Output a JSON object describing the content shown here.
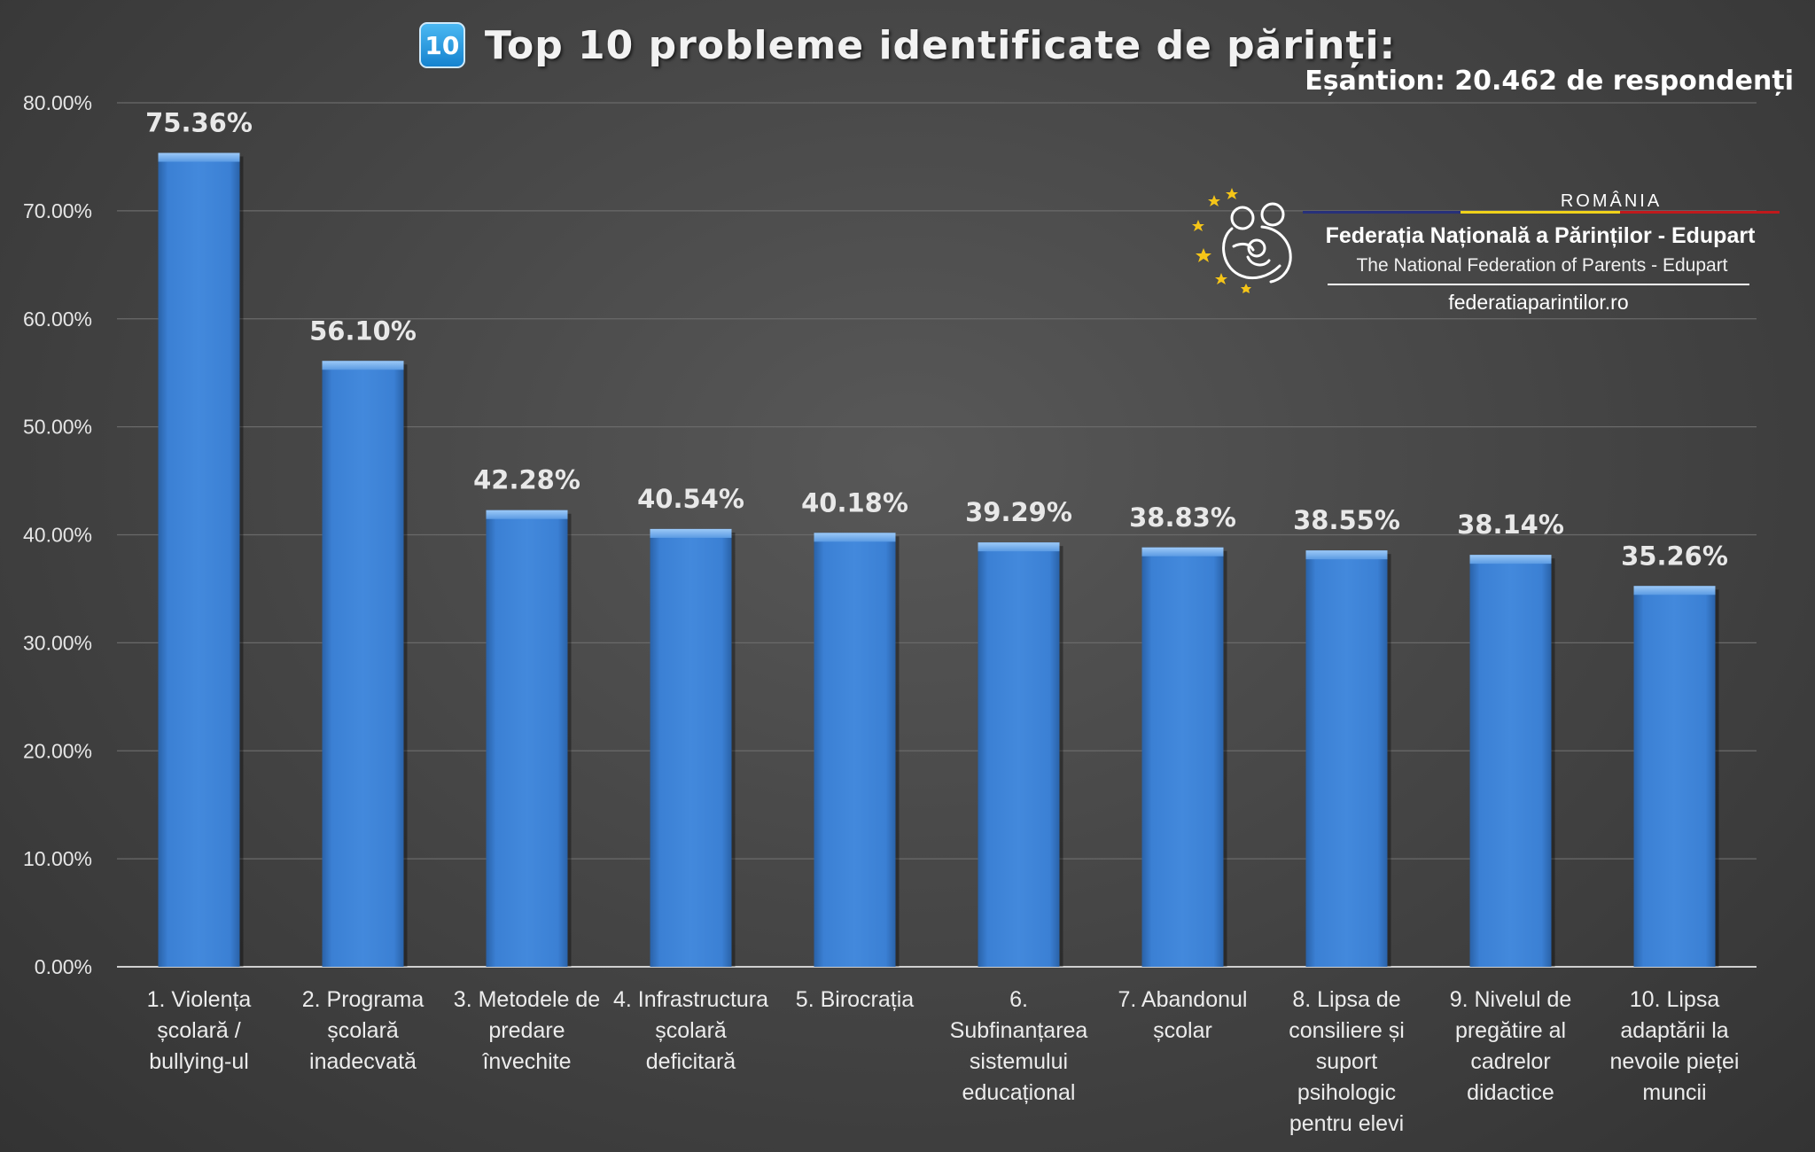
{
  "header": {
    "badge": "10",
    "title": "Top 10 probleme identificate de părinți:",
    "sample": "Eșantion: 20.462 de respondenți"
  },
  "logo": {
    "country": "ROMÂNIA",
    "name": "Federația Națională a Părinților - Edupart",
    "subtitle": "The National Federation of Parents - Edupart",
    "url": "federatiaparintilor.ro",
    "flag_colors": [
      "#27307a",
      "#f0d21a",
      "#c0191c"
    ]
  },
  "chart_data": {
    "type": "bar",
    "title": "Top 10 probleme identificate de părinți:",
    "xlabel": "",
    "ylabel": "",
    "ylim": [
      0,
      80
    ],
    "yticks": [
      "0.00%",
      "10.00%",
      "20.00%",
      "30.00%",
      "40.00%",
      "50.00%",
      "60.00%",
      "70.00%",
      "80.00%"
    ],
    "grid": true,
    "legend": "none",
    "bar_color": "#3a7fd0",
    "categories": [
      [
        "1. Violența",
        "școlară /",
        "bullying-ul"
      ],
      [
        "2. Programa",
        "școlară",
        "inadecvată"
      ],
      [
        "3. Metodele de",
        "predare",
        "învechite"
      ],
      [
        "4. Infrastructura",
        "școlară",
        "deficitară"
      ],
      [
        "5. Birocrația"
      ],
      [
        "6.",
        "Subfinanțarea",
        "sistemului",
        "educațional"
      ],
      [
        "7. Abandonul",
        "școlar"
      ],
      [
        "8. Lipsa de",
        "consiliere și",
        "suport",
        "psihologic",
        "pentru elevi"
      ],
      [
        "9. Nivelul de",
        "pregătire al",
        "cadrelor",
        "didactice"
      ],
      [
        "10. Lipsa",
        "adaptării la",
        "nevoile pieței",
        "muncii"
      ]
    ],
    "values": [
      75.36,
      56.1,
      42.28,
      40.54,
      40.18,
      39.29,
      38.83,
      38.55,
      38.14,
      35.26
    ],
    "data_labels": [
      "75.36%",
      "56.10%",
      "42.28%",
      "40.54%",
      "40.18%",
      "39.29%",
      "38.83%",
      "38.55%",
      "38.14%",
      "35.26%"
    ]
  }
}
